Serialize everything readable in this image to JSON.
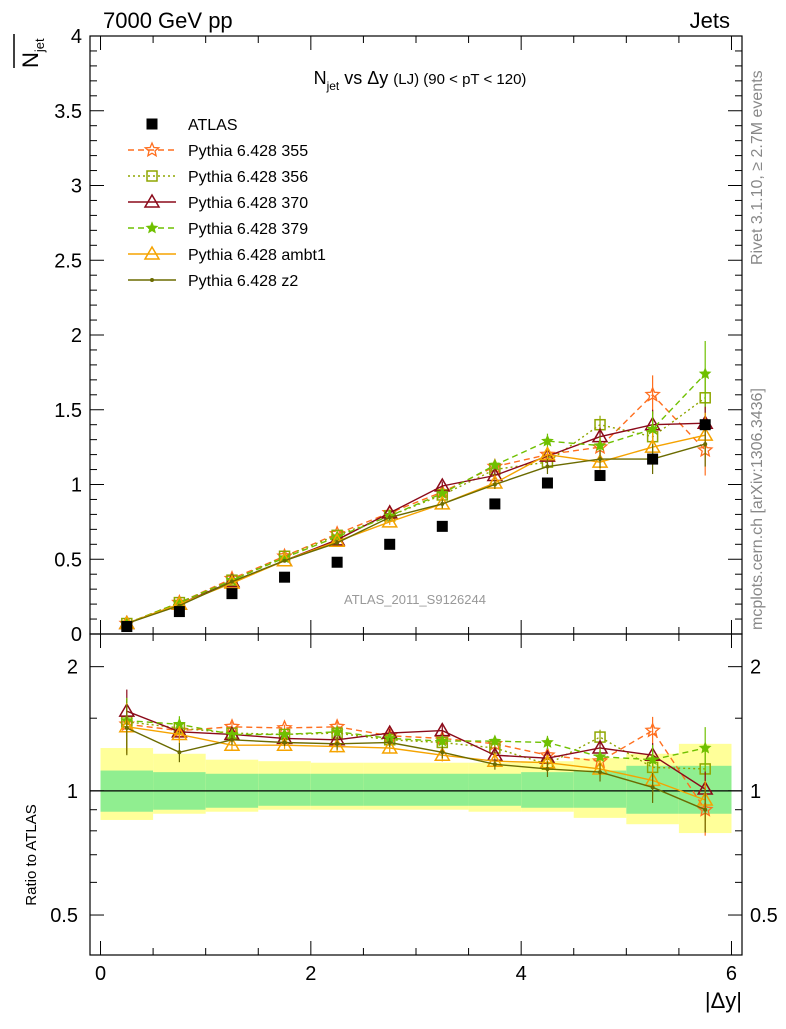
{
  "header": {
    "left": "7000 GeV pp",
    "right": "Jets"
  },
  "side_labels": {
    "rivet": "Rivet 3.1.10, ≥ 2.7M events",
    "mcplots": "mcplots.cern.ch [arXiv:1306.3436]"
  },
  "watermark": "ATLAS_2011_S9126244",
  "chart_data": [
    {
      "type": "line",
      "title_main": "N",
      "title_sub": "jet",
      "title_rest": " vs Δy ",
      "title_small": "(LJ) (90 < pT < 120)",
      "ylabel_main": "N",
      "ylabel_sub": "jet",
      "xlabel": "|Δy|",
      "xlim": [
        -0.1,
        6.1
      ],
      "ylim": [
        0,
        4
      ],
      "yticks": [
        "0",
        "0.5",
        "1",
        "1.5",
        "2",
        "2.5",
        "3",
        "3.5",
        "4"
      ],
      "x": [
        0.25,
        0.75,
        1.25,
        1.75,
        2.25,
        2.75,
        3.25,
        3.75,
        4.25,
        4.75,
        5.25,
        5.75
      ],
      "series": [
        {
          "name": "ATLAS",
          "marker": "square",
          "color": "#000000",
          "line": "none",
          "values": [
            0.05,
            0.15,
            0.27,
            0.38,
            0.48,
            0.6,
            0.72,
            0.87,
            1.01,
            1.06,
            1.17,
            1.4
          ]
        },
        {
          "name": "Pythia 6.428 355",
          "marker": "star",
          "color": "#ff6f1f",
          "line": "dashed",
          "values": [
            0.07,
            0.21,
            0.37,
            0.52,
            0.67,
            0.81,
            0.95,
            1.12,
            1.2,
            1.25,
            1.6,
            1.23
          ],
          "errors": [
            0.01,
            0.01,
            0.01,
            0.01,
            0.02,
            0.02,
            0.03,
            0.03,
            0.05,
            0.06,
            0.13,
            0.17
          ]
        },
        {
          "name": "Pythia 6.428 356",
          "marker": "square-open",
          "color": "#8fa600",
          "line": "dotted",
          "values": [
            0.07,
            0.21,
            0.36,
            0.52,
            0.66,
            0.79,
            0.93,
            1.1,
            1.15,
            1.4,
            1.32,
            1.58
          ],
          "errors": [
            0.01,
            0.01,
            0.01,
            0.01,
            0.02,
            0.02,
            0.03,
            0.03,
            0.05,
            0.06,
            0.12,
            0.18
          ]
        },
        {
          "name": "Pythia 6.428 370",
          "marker": "triangle-open",
          "color": "#8b0a1a",
          "line": "solid",
          "values": [
            0.07,
            0.2,
            0.35,
            0.49,
            0.63,
            0.81,
            0.99,
            1.06,
            1.19,
            1.32,
            1.4,
            1.41
          ],
          "errors": [
            0.01,
            0.01,
            0.01,
            0.01,
            0.02,
            0.02,
            0.03,
            0.03,
            0.05,
            0.06,
            0.1,
            0.15
          ]
        },
        {
          "name": "Pythia 6.428 379",
          "marker": "star-small",
          "color": "#6fc000",
          "line": "dashed",
          "values": [
            0.07,
            0.21,
            0.36,
            0.51,
            0.65,
            0.79,
            0.94,
            1.13,
            1.29,
            1.26,
            1.37,
            1.74
          ],
          "errors": [
            0.01,
            0.01,
            0.01,
            0.01,
            0.02,
            0.02,
            0.03,
            0.03,
            0.05,
            0.06,
            0.12,
            0.22
          ]
        },
        {
          "name": "Pythia 6.428 ambt1",
          "marker": "triangle-open",
          "color": "#f5a300",
          "line": "solid",
          "values": [
            0.07,
            0.2,
            0.34,
            0.49,
            0.62,
            0.75,
            0.87,
            1.01,
            1.2,
            1.15,
            1.25,
            1.33
          ],
          "errors": [
            0.01,
            0.01,
            0.01,
            0.01,
            0.02,
            0.02,
            0.03,
            0.03,
            0.05,
            0.06,
            0.1,
            0.15
          ]
        },
        {
          "name": "Pythia 6.428 z2",
          "marker": "dot",
          "color": "#6b6b00",
          "line": "solid",
          "values": [
            0.07,
            0.19,
            0.35,
            0.49,
            0.61,
            0.78,
            0.87,
            1.0,
            1.12,
            1.17,
            1.17,
            1.27
          ],
          "errors": [
            0.01,
            0.01,
            0.01,
            0.01,
            0.02,
            0.02,
            0.03,
            0.03,
            0.05,
            0.06,
            0.1,
            0.15
          ]
        }
      ]
    },
    {
      "type": "line",
      "ylabel": "Ratio to ATLAS",
      "xlabel": "|Δy|",
      "xlim": [
        -0.1,
        6.1
      ],
      "ylim": [
        0.4,
        2.4
      ],
      "yscale": "log",
      "yticks": [
        "0.5",
        "1",
        "2"
      ],
      "xticks": [
        "0",
        "2",
        "4",
        "6"
      ],
      "x": [
        0.25,
        0.75,
        1.25,
        1.75,
        2.25,
        2.75,
        3.25,
        3.75,
        4.25,
        4.75,
        5.25,
        5.75
      ],
      "bands": {
        "bins": [
          [
            0,
            0.5
          ],
          [
            0.5,
            1
          ],
          [
            1,
            1.5
          ],
          [
            1.5,
            2
          ],
          [
            2,
            2.5
          ],
          [
            2.5,
            3
          ],
          [
            3,
            3.5
          ],
          [
            3.5,
            4
          ],
          [
            4,
            4.5
          ],
          [
            4.5,
            5
          ],
          [
            5,
            5.5
          ],
          [
            5.5,
            6
          ]
        ],
        "green_lo": [
          0.89,
          0.9,
          0.91,
          0.92,
          0.92,
          0.92,
          0.92,
          0.92,
          0.91,
          0.91,
          0.88,
          0.88
        ],
        "green_hi": [
          1.12,
          1.11,
          1.1,
          1.1,
          1.1,
          1.1,
          1.1,
          1.1,
          1.11,
          1.12,
          1.15,
          1.15
        ],
        "yellow_lo": [
          0.85,
          0.88,
          0.89,
          0.9,
          0.9,
          0.9,
          0.9,
          0.89,
          0.89,
          0.86,
          0.83,
          0.79
        ],
        "yellow_hi": [
          1.27,
          1.23,
          1.19,
          1.18,
          1.17,
          1.17,
          1.17,
          1.17,
          1.18,
          1.2,
          1.23,
          1.3
        ],
        "green": "#90ee90",
        "yellow": "#ffff99"
      },
      "series": [
        {
          "name": "Pythia 6.428 355",
          "values": [
            1.45,
            1.4,
            1.43,
            1.42,
            1.43,
            1.36,
            1.34,
            1.3,
            1.22,
            1.18,
            1.4,
            0.9
          ]
        },
        {
          "name": "Pythia 6.428 356",
          "values": [
            1.47,
            1.42,
            1.38,
            1.37,
            1.38,
            1.33,
            1.31,
            1.27,
            1.16,
            1.35,
            1.14,
            1.13
          ]
        },
        {
          "name": "Pythia 6.428 370",
          "values": [
            1.56,
            1.39,
            1.37,
            1.34,
            1.33,
            1.38,
            1.4,
            1.22,
            1.2,
            1.27,
            1.22,
            1.01
          ]
        },
        {
          "name": "Pythia 6.428 379",
          "values": [
            1.48,
            1.45,
            1.37,
            1.37,
            1.39,
            1.34,
            1.32,
            1.32,
            1.31,
            1.21,
            1.19,
            1.27
          ]
        },
        {
          "name": "Pythia 6.428 ambt1",
          "values": [
            1.43,
            1.37,
            1.29,
            1.29,
            1.28,
            1.27,
            1.22,
            1.18,
            1.17,
            1.13,
            1.06,
            0.95
          ]
        },
        {
          "name": "Pythia 6.428 z2",
          "values": [
            1.42,
            1.24,
            1.33,
            1.31,
            1.3,
            1.31,
            1.24,
            1.16,
            1.13,
            1.11,
            1.02,
            0.9
          ]
        }
      ]
    }
  ]
}
